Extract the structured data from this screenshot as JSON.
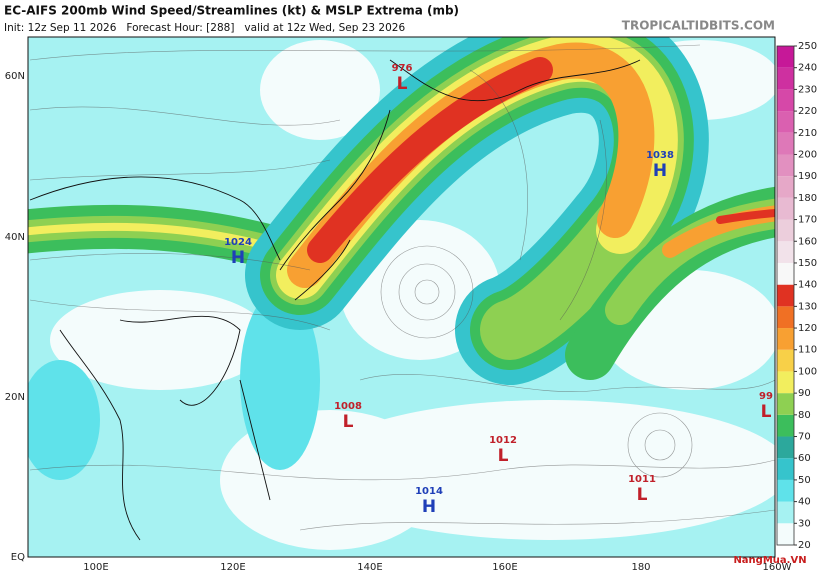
{
  "header": {
    "title": "EC-AIFS 200mb Wind Speed/Streamlines (kt) & MSLP Extrema (mb)",
    "subtitle": "Init: 12z Sep 11 2026   Forecast Hour: [288]   valid at 12z Wed, Sep 23 2026",
    "source": "TROPICALTIDBITS.COM"
  },
  "latitude_labels": [
    "60N",
    "40N",
    "20N",
    "EQ"
  ],
  "longitude_labels": [
    "100E",
    "120E",
    "140E",
    "160E",
    "180",
    "160W"
  ],
  "pressure_centers": [
    {
      "value": "976",
      "letter": "L"
    },
    {
      "value": "1038",
      "letter": "H"
    },
    {
      "value": "1024",
      "letter": "H"
    },
    {
      "value": "1008",
      "letter": "L"
    },
    {
      "value": "1012",
      "letter": "L"
    },
    {
      "value": "1014",
      "letter": "H"
    },
    {
      "value": "1011",
      "letter": "L"
    },
    {
      "value": "99",
      "letter": "L"
    }
  ],
  "colorbar": {
    "ticks": [
      20,
      30,
      40,
      50,
      60,
      70,
      80,
      90,
      100,
      110,
      120,
      130,
      140,
      150,
      160,
      170,
      180,
      190,
      200,
      210,
      220,
      230,
      240,
      250
    ],
    "colors": [
      "#f4fcfc",
      "#a6f2f2",
      "#5fe2ea",
      "#36c4cc",
      "#2ca89c",
      "#3cbe5c",
      "#8ed052",
      "#f2ee5e",
      "#f8d048",
      "#f8a032",
      "#f07024",
      "#e03222",
      "#f8f8f8",
      "#f2e2ea",
      "#eccedc",
      "#e8bad2",
      "#e6a8c8",
      "#e290c0",
      "#de78b8",
      "#da60b0",
      "#d648a8",
      "#ce30a0",
      "#c61898"
    ]
  },
  "watermark": "NangMua.VN"
}
